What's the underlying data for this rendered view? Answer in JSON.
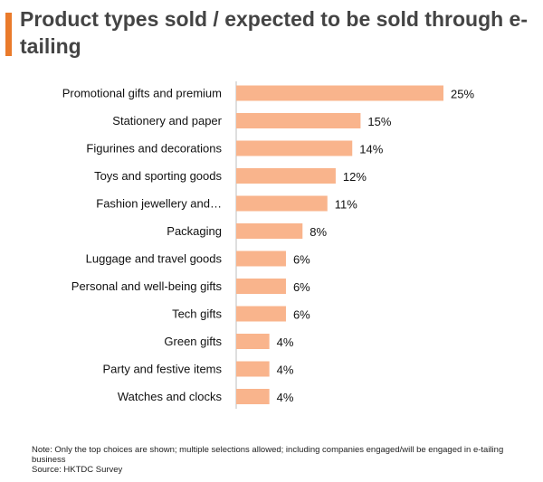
{
  "title": "Product types sold / expected to be sold through e-tailing",
  "colors": {
    "accent": "#ea7b2b",
    "bar": "#f9b48c",
    "axis": "#bdbdbd"
  },
  "chart_data": {
    "type": "bar",
    "orientation": "horizontal",
    "title": "Product types sold / expected to be sold through e-tailing",
    "categories": [
      "Promotional gifts and premium",
      "Stationery and paper",
      "Figurines and decorations",
      "Toys and sporting goods",
      "Fashion jewellery and…",
      "Packaging",
      "Luggage and travel goods",
      "Personal and well-being gifts",
      "Tech gifts",
      "Green gifts",
      "Party and festive items",
      "Watches and clocks"
    ],
    "values": [
      25,
      15,
      14,
      12,
      11,
      8,
      6,
      6,
      6,
      4,
      4,
      4
    ],
    "value_labels": [
      "25%",
      "15%",
      "14%",
      "12%",
      "11%",
      "8%",
      "6%",
      "6%",
      "6%",
      "4%",
      "4%",
      "4%"
    ],
    "unit": "%",
    "xlim": [
      0,
      25
    ],
    "xlabel": "",
    "ylabel": "",
    "grid": false,
    "legend": "none"
  },
  "footnote": {
    "note": "Note: Only the top choices are shown; multiple selections allowed; including companies engaged/will be engaged in e-tailing business",
    "source": "Source: HKTDC  Survey"
  }
}
